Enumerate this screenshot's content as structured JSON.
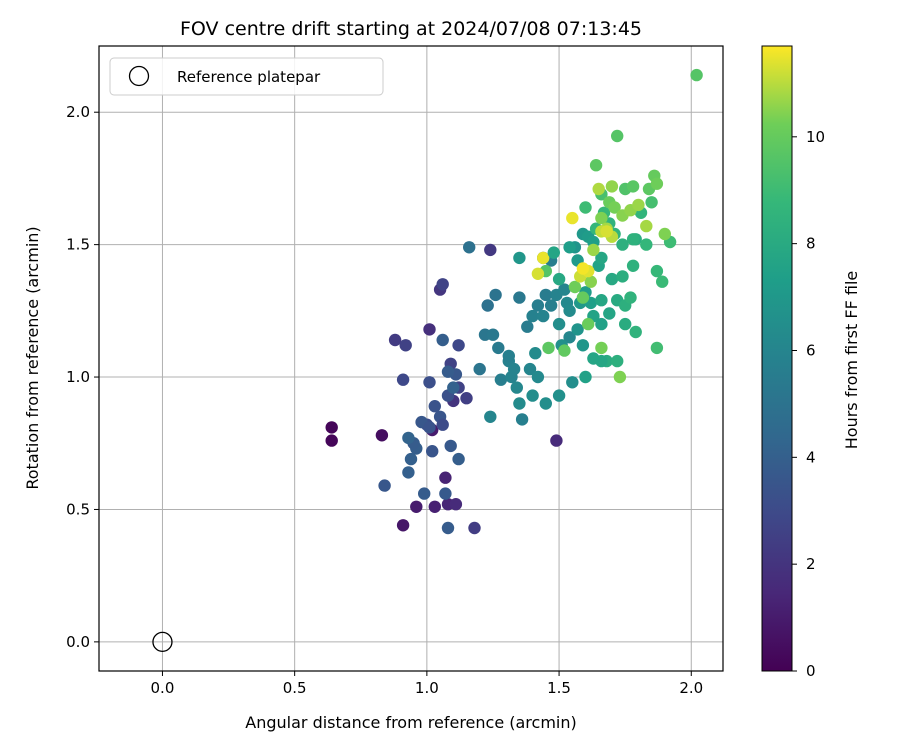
{
  "chart_data": {
    "type": "scatter",
    "title": "FOV centre drift starting at 2024/07/08 07:13:45",
    "xlabel": "Angular distance from reference (arcmin)",
    "ylabel": "Rotation from reference (arcmin)",
    "xlim": [
      -0.24,
      2.12
    ],
    "ylim": [
      -0.11,
      2.25
    ],
    "xticks": [
      0.0,
      0.5,
      1.0,
      1.5,
      2.0
    ],
    "yticks": [
      0.0,
      0.5,
      1.0,
      1.5,
      2.0
    ],
    "xtick_labels": [
      "0.0",
      "0.5",
      "1.0",
      "1.5",
      "2.0"
    ],
    "ytick_labels": [
      "0.0",
      "0.5",
      "1.0",
      "1.5",
      "2.0"
    ],
    "grid": true,
    "legend": {
      "label": "Reference platepar",
      "placement": "top-left"
    },
    "reference_point": {
      "x": 0.0,
      "y": 0.0
    },
    "colorbar": {
      "label": "Hours from first FF file",
      "min": 0,
      "max": 11.7,
      "ticks": [
        0,
        2,
        4,
        6,
        8,
        10
      ],
      "tick_labels": [
        "0",
        "2",
        "4",
        "6",
        "8",
        "10"
      ],
      "colormap": "viridis"
    },
    "points": [
      [
        0.64,
        0.81,
        0.2
      ],
      [
        0.64,
        0.76,
        0.2
      ],
      [
        0.83,
        0.78,
        0.5
      ],
      [
        0.91,
        0.44,
        0.8
      ],
      [
        0.96,
        0.51,
        1.0
      ],
      [
        1.02,
        0.8,
        1.0
      ],
      [
        1.03,
        0.51,
        1.2
      ],
      [
        1.07,
        0.62,
        1.3
      ],
      [
        1.08,
        0.52,
        1.4
      ],
      [
        1.11,
        0.52,
        1.6
      ],
      [
        1.49,
        0.76,
        1.6
      ],
      [
        1.01,
        1.18,
        1.8
      ],
      [
        1.05,
        1.33,
        2.1
      ],
      [
        1.1,
        0.91,
        2.0
      ],
      [
        0.88,
        1.14,
        2.3
      ],
      [
        0.92,
        1.12,
        2.6
      ],
      [
        1.06,
        1.35,
        2.7
      ],
      [
        1.12,
        0.96,
        2.6
      ],
      [
        1.15,
        0.92,
        2.5
      ],
      [
        1.18,
        0.43,
        2.4
      ],
      [
        1.24,
        1.48,
        2.2
      ],
      [
        0.91,
        0.99,
        2.9
      ],
      [
        1.01,
        0.98,
        3.2
      ],
      [
        1.03,
        0.89,
        3.4
      ],
      [
        1.05,
        0.85,
        3.5
      ],
      [
        1.07,
        0.56,
        3.7
      ],
      [
        1.08,
        0.43,
        3.8
      ],
      [
        1.12,
        1.12,
        2.9
      ],
      [
        1.09,
        1.05,
        2.6
      ],
      [
        1.06,
        0.82,
        3.0
      ],
      [
        1.0,
        0.82,
        3.1
      ],
      [
        1.02,
        0.72,
        3.5
      ],
      [
        0.98,
        0.83,
        3.6
      ],
      [
        0.99,
        0.56,
        3.8
      ],
      [
        0.96,
        0.73,
        3.9
      ],
      [
        0.94,
        0.69,
        4.0
      ],
      [
        0.95,
        0.75,
        3.8
      ],
      [
        0.93,
        0.64,
        4.0
      ],
      [
        0.84,
        0.59,
        3.6
      ],
      [
        0.93,
        0.77,
        4.2
      ],
      [
        1.01,
        0.81,
        3.4
      ],
      [
        1.08,
        0.93,
        3.3
      ],
      [
        1.11,
        1.01,
        3.6
      ],
      [
        1.08,
        1.02,
        3.8
      ],
      [
        1.06,
        1.14,
        3.9
      ],
      [
        1.09,
        0.74,
        3.7
      ],
      [
        1.12,
        0.69,
        3.9
      ],
      [
        1.1,
        0.96,
        4.1
      ],
      [
        1.16,
        1.49,
        4.9
      ],
      [
        1.23,
        1.27,
        4.9
      ],
      [
        1.26,
        1.31,
        5.0
      ],
      [
        1.22,
        1.16,
        5.2
      ],
      [
        1.25,
        1.16,
        5.3
      ],
      [
        1.2,
        1.03,
        5.1
      ],
      [
        1.27,
        1.11,
        5.4
      ],
      [
        1.28,
        0.99,
        5.6
      ],
      [
        1.31,
        1.06,
        5.8
      ],
      [
        1.32,
        1.0,
        5.9
      ],
      [
        1.31,
        1.08,
        5.7
      ],
      [
        1.33,
        1.03,
        5.9
      ],
      [
        1.34,
        0.96,
        6.1
      ],
      [
        1.35,
        0.9,
        6.3
      ],
      [
        1.36,
        0.84,
        5.7
      ],
      [
        1.24,
        0.85,
        6.0
      ],
      [
        1.38,
        1.19,
        5.5
      ],
      [
        1.4,
        1.23,
        5.8
      ],
      [
        1.42,
        1.27,
        5.6
      ],
      [
        1.44,
        1.23,
        5.9
      ],
      [
        1.39,
        1.03,
        6.0
      ],
      [
        1.42,
        1.0,
        6.2
      ],
      [
        1.4,
        0.93,
        6.4
      ],
      [
        1.45,
        0.9,
        6.5
      ],
      [
        1.5,
        0.93,
        6.6
      ],
      [
        1.41,
        1.09,
        6.3
      ],
      [
        1.35,
        1.3,
        5.3
      ],
      [
        1.45,
        1.31,
        5.5
      ],
      [
        1.47,
        1.27,
        5.7
      ],
      [
        1.49,
        1.31,
        5.9
      ],
      [
        1.52,
        1.33,
        6.0
      ],
      [
        1.53,
        1.28,
        6.2
      ],
      [
        1.47,
        1.44,
        5.6
      ],
      [
        1.44,
        1.45,
        5.0
      ],
      [
        1.54,
        1.15,
        6.1
      ],
      [
        1.54,
        1.25,
        6.3
      ],
      [
        1.5,
        1.2,
        6.5
      ],
      [
        1.51,
        1.12,
        6.6
      ],
      [
        1.57,
        1.18,
        6.8
      ],
      [
        1.59,
        1.12,
        6.9
      ],
      [
        1.55,
        0.98,
        6.5
      ],
      [
        1.58,
        1.28,
        7.0
      ],
      [
        1.6,
        1.32,
        7.2
      ],
      [
        1.62,
        1.28,
        7.4
      ],
      [
        1.56,
        1.49,
        6.8
      ],
      [
        1.59,
        1.54,
        7.0
      ],
      [
        1.61,
        1.53,
        7.2
      ],
      [
        1.63,
        1.51,
        7.4
      ],
      [
        1.57,
        1.44,
        7.1
      ],
      [
        1.54,
        1.49,
        7.3
      ],
      [
        1.63,
        1.23,
        7.6
      ],
      [
        1.66,
        1.29,
        7.8
      ],
      [
        1.66,
        1.2,
        7.5
      ],
      [
        1.69,
        1.24,
        7.7
      ],
      [
        1.7,
        1.37,
        7.9
      ],
      [
        1.65,
        1.42,
        7.6
      ],
      [
        1.66,
        1.45,
        7.8
      ],
      [
        1.72,
        1.29,
        8.0
      ],
      [
        1.74,
        1.38,
        8.2
      ],
      [
        1.68,
        1.06,
        8.1
      ],
      [
        1.72,
        1.06,
        8.3
      ],
      [
        1.66,
        1.06,
        7.8
      ],
      [
        1.6,
        1.0,
        7.5
      ],
      [
        1.63,
        1.07,
        7.7
      ],
      [
        1.75,
        1.2,
        8.1
      ],
      [
        1.75,
        1.27,
        8.3
      ],
      [
        1.77,
        1.3,
        8.5
      ],
      [
        1.79,
        1.17,
        8.5
      ],
      [
        1.78,
        1.42,
        8.4
      ],
      [
        1.79,
        1.52,
        8.2
      ],
      [
        1.81,
        1.62,
        8.6
      ],
      [
        1.83,
        1.5,
        8.7
      ],
      [
        1.87,
        1.4,
        8.8
      ],
      [
        1.89,
        1.36,
        8.9
      ],
      [
        1.92,
        1.51,
        9.0
      ],
      [
        1.85,
        1.66,
        9.2
      ],
      [
        1.78,
        1.52,
        8.4
      ],
      [
        1.74,
        1.5,
        8.3
      ],
      [
        1.71,
        1.54,
        8.6
      ],
      [
        1.69,
        1.58,
        8.5
      ],
      [
        1.67,
        1.62,
        8.8
      ],
      [
        1.64,
        1.56,
        8.7
      ],
      [
        1.6,
        1.64,
        9.0
      ],
      [
        1.66,
        1.69,
        9.3
      ],
      [
        1.75,
        1.71,
        9.5
      ],
      [
        1.78,
        1.72,
        9.7
      ],
      [
        1.84,
        1.71,
        9.8
      ],
      [
        1.86,
        1.76,
        10.0
      ],
      [
        1.87,
        1.73,
        10.2
      ],
      [
        1.9,
        1.54,
        10.4
      ],
      [
        1.72,
        1.91,
        9.6
      ],
      [
        1.64,
        1.8,
        9.8
      ],
      [
        2.02,
        2.14,
        9.6
      ],
      [
        1.69,
        1.66,
        10.1
      ],
      [
        1.71,
        1.64,
        10.3
      ],
      [
        1.74,
        1.61,
        10.5
      ],
      [
        1.77,
        1.63,
        10.6
      ],
      [
        1.8,
        1.65,
        10.7
      ],
      [
        1.83,
        1.57,
        10.8
      ],
      [
        1.65,
        1.71,
        10.9
      ],
      [
        1.7,
        1.72,
        10.6
      ],
      [
        1.66,
        1.6,
        10.4
      ],
      [
        1.68,
        1.56,
        10.8
      ],
      [
        1.7,
        1.53,
        11.0
      ],
      [
        1.63,
        1.48,
        10.7
      ],
      [
        1.56,
        1.34,
        10.2
      ],
      [
        1.59,
        1.3,
        10.0
      ],
      [
        1.61,
        1.2,
        10.1
      ],
      [
        1.66,
        1.11,
        10.3
      ],
      [
        1.73,
        1.0,
        10.4
      ],
      [
        1.52,
        1.1,
        9.9
      ],
      [
        1.46,
        1.11,
        9.8
      ],
      [
        1.45,
        1.4,
        9.6
      ],
      [
        1.62,
        1.36,
        10.5
      ],
      [
        1.58,
        1.38,
        11.2
      ],
      [
        1.61,
        1.4,
        11.4
      ],
      [
        1.59,
        1.41,
        11.6
      ],
      [
        1.55,
        1.6,
        11.5
      ],
      [
        1.42,
        1.39,
        11.3
      ],
      [
        1.44,
        1.45,
        11.5
      ],
      [
        1.66,
        1.55,
        11.1
      ],
      [
        1.68,
        1.55,
        11.3
      ],
      [
        1.87,
        1.11,
        9.1
      ],
      [
        1.5,
        1.37,
        7.9
      ],
      [
        1.48,
        1.47,
        7.7
      ],
      [
        1.35,
        1.45,
        6.9
      ]
    ]
  }
}
